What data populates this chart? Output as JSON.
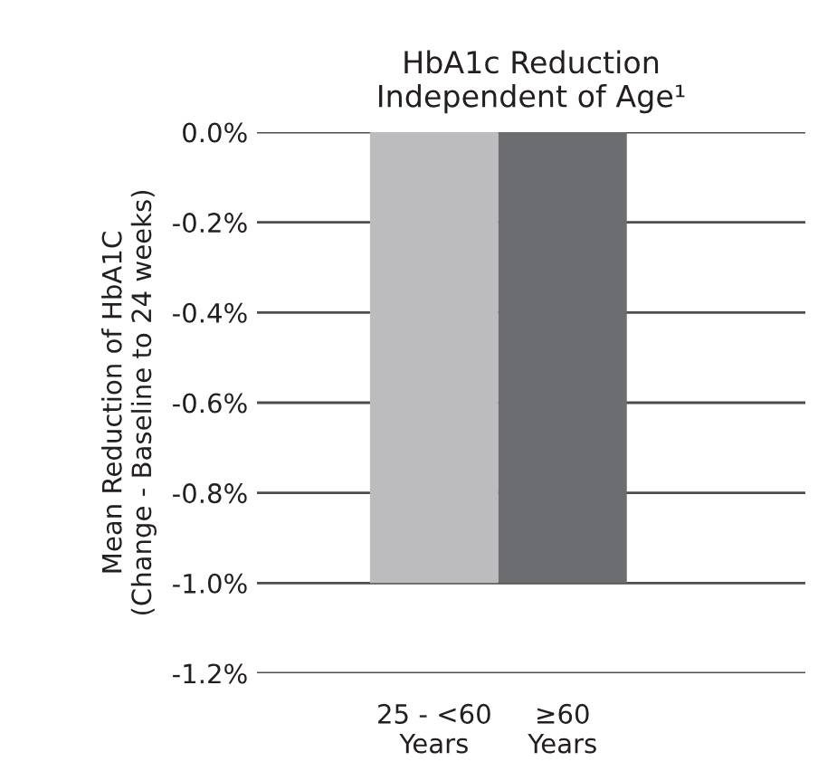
{
  "chart_data": {
    "type": "bar",
    "title": "HbA1c Reduction\nIndependent of Age¹",
    "ylabel": "Mean Reduction of HbA1C\n(Change - Baseline to 24 weeks)",
    "categories": [
      "25 - <60\nYears",
      "≥60\nYears"
    ],
    "values": [
      -1.0,
      -1.0
    ],
    "colors": [
      "#bcbcbf",
      "#6c6d70"
    ],
    "ylim": [
      -1.2,
      0
    ],
    "yticks": [
      {
        "value": 0,
        "label": "0.0%"
      },
      {
        "value": -0.2,
        "label": "-0.2%"
      },
      {
        "value": -0.4,
        "label": "-0.4%"
      },
      {
        "value": -0.6,
        "label": "-0.6%"
      },
      {
        "value": -0.8,
        "label": "-0.8%"
      },
      {
        "value": -1.0,
        "label": "-1.0%"
      },
      {
        "value": -1.2,
        "label": "-1.2%"
      }
    ],
    "grid": "y",
    "legend": false
  }
}
